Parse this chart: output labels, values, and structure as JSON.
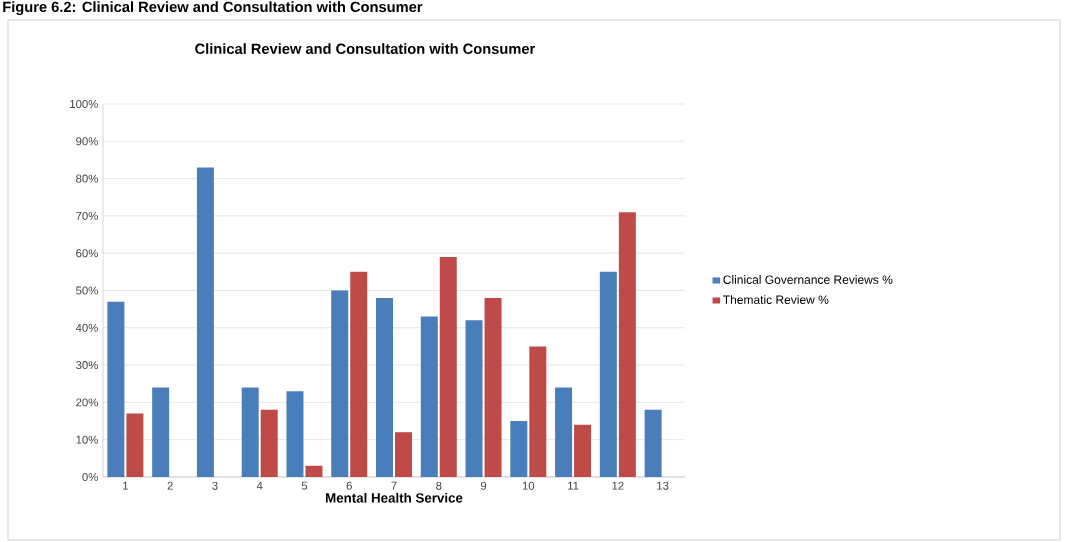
{
  "chart_data": {
    "type": "bar",
    "title": "Clinical Review and Consultation with Consumer",
    "xlabel": "Mental Health Service",
    "annotations": [
      "Figure 6.2: Clinical Review and Consultation with Consumer"
    ],
    "categories": [
      "1",
      "2",
      "3",
      "4",
      "5",
      "6",
      "7",
      "8",
      "9",
      "10",
      "11",
      "12",
      "13"
    ],
    "series": [
      {
        "name": "Clinical Governance Reviews %",
        "color": "#4a7ebb",
        "values": [
          47,
          24,
          83,
          24,
          23,
          50,
          48,
          43,
          42,
          15,
          24,
          55,
          18
        ]
      },
      {
        "name": "Thematic Review %",
        "color": "#be4b48",
        "values": [
          17,
          null,
          null,
          18,
          3,
          55,
          12,
          59,
          48,
          35,
          14,
          71,
          null
        ]
      }
    ],
    "ylim": [
      0,
      100
    ],
    "yticks": [
      {
        "value": 0,
        "label": "0%"
      },
      {
        "value": 10,
        "label": "10%"
      },
      {
        "value": 20,
        "label": "20%"
      },
      {
        "value": 30,
        "label": "30%"
      },
      {
        "value": 40,
        "label": "40%"
      },
      {
        "value": 50,
        "label": "50%"
      },
      {
        "value": 60,
        "label": "60%"
      },
      {
        "value": 70,
        "label": "70%"
      },
      {
        "value": 80,
        "label": "80%"
      },
      {
        "value": 90,
        "label": "90%"
      },
      {
        "value": 100,
        "label": "100%"
      }
    ],
    "grid": "y",
    "legend": "right"
  }
}
